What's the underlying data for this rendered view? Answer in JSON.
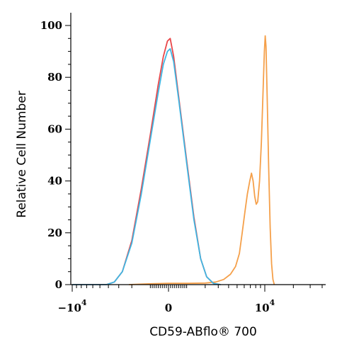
{
  "chart_data": {
    "type": "line",
    "xlabel": "CD59-ABflo® 700",
    "ylabel": "Relative Cell Number",
    "xscale": "biexponential",
    "ylim": [
      0,
      100
    ],
    "y_ticks": [
      "0",
      "20",
      "40",
      "60",
      "80",
      "100"
    ],
    "x_ticks": [
      {
        "value": -10000,
        "base": "−10",
        "exp": "4"
      },
      {
        "value": 0,
        "label": "0"
      },
      {
        "value": 10000,
        "base": "10",
        "exp": "4"
      }
    ],
    "grid": false,
    "legend": "none",
    "series": [
      {
        "color": "#f5a04a",
        "points": [
          [
            -2200,
            0
          ],
          [
            -1000,
            0.3
          ],
          [
            0,
            0.5
          ],
          [
            1000,
            0.5
          ],
          [
            2000,
            0.6
          ],
          [
            2800,
            1
          ],
          [
            3500,
            2
          ],
          [
            4200,
            4
          ],
          [
            4800,
            7
          ],
          [
            5300,
            12
          ],
          [
            5700,
            20
          ],
          [
            6100,
            28
          ],
          [
            6500,
            35
          ],
          [
            6900,
            40
          ],
          [
            7200,
            43
          ],
          [
            7500,
            40
          ],
          [
            7800,
            34
          ],
          [
            8100,
            31
          ],
          [
            8400,
            32
          ],
          [
            8800,
            40
          ],
          [
            9200,
            55
          ],
          [
            9600,
            75
          ],
          [
            9900,
            90
          ],
          [
            10100,
            96
          ],
          [
            10300,
            92
          ],
          [
            10600,
            72
          ],
          [
            11000,
            45
          ],
          [
            11400,
            22
          ],
          [
            11800,
            8
          ],
          [
            12200,
            2
          ],
          [
            12600,
            0
          ]
        ]
      },
      {
        "color": "#e8474a",
        "points": [
          [
            -10000,
            0
          ],
          [
            -4200,
            0
          ],
          [
            -3400,
            1
          ],
          [
            -2700,
            5
          ],
          [
            -2000,
            17
          ],
          [
            -1400,
            37
          ],
          [
            -900,
            58
          ],
          [
            -500,
            77
          ],
          [
            -250,
            88
          ],
          [
            -50,
            94
          ],
          [
            80,
            95
          ],
          [
            250,
            88
          ],
          [
            500,
            72
          ],
          [
            900,
            48
          ],
          [
            1300,
            26
          ],
          [
            1700,
            10
          ],
          [
            2100,
            3
          ],
          [
            2600,
            0.5
          ],
          [
            3200,
            0
          ]
        ]
      },
      {
        "color": "#3fb6e3",
        "points": [
          [
            -10000,
            0
          ],
          [
            -4200,
            0
          ],
          [
            -3400,
            1
          ],
          [
            -2700,
            5
          ],
          [
            -2000,
            16
          ],
          [
            -1400,
            35
          ],
          [
            -900,
            56
          ],
          [
            -500,
            74
          ],
          [
            -250,
            85
          ],
          [
            -50,
            90
          ],
          [
            80,
            91
          ],
          [
            250,
            86
          ],
          [
            500,
            71
          ],
          [
            900,
            47
          ],
          [
            1300,
            25
          ],
          [
            1700,
            10
          ],
          [
            2100,
            3
          ],
          [
            2600,
            0.5
          ],
          [
            3200,
            0
          ]
        ]
      }
    ]
  }
}
